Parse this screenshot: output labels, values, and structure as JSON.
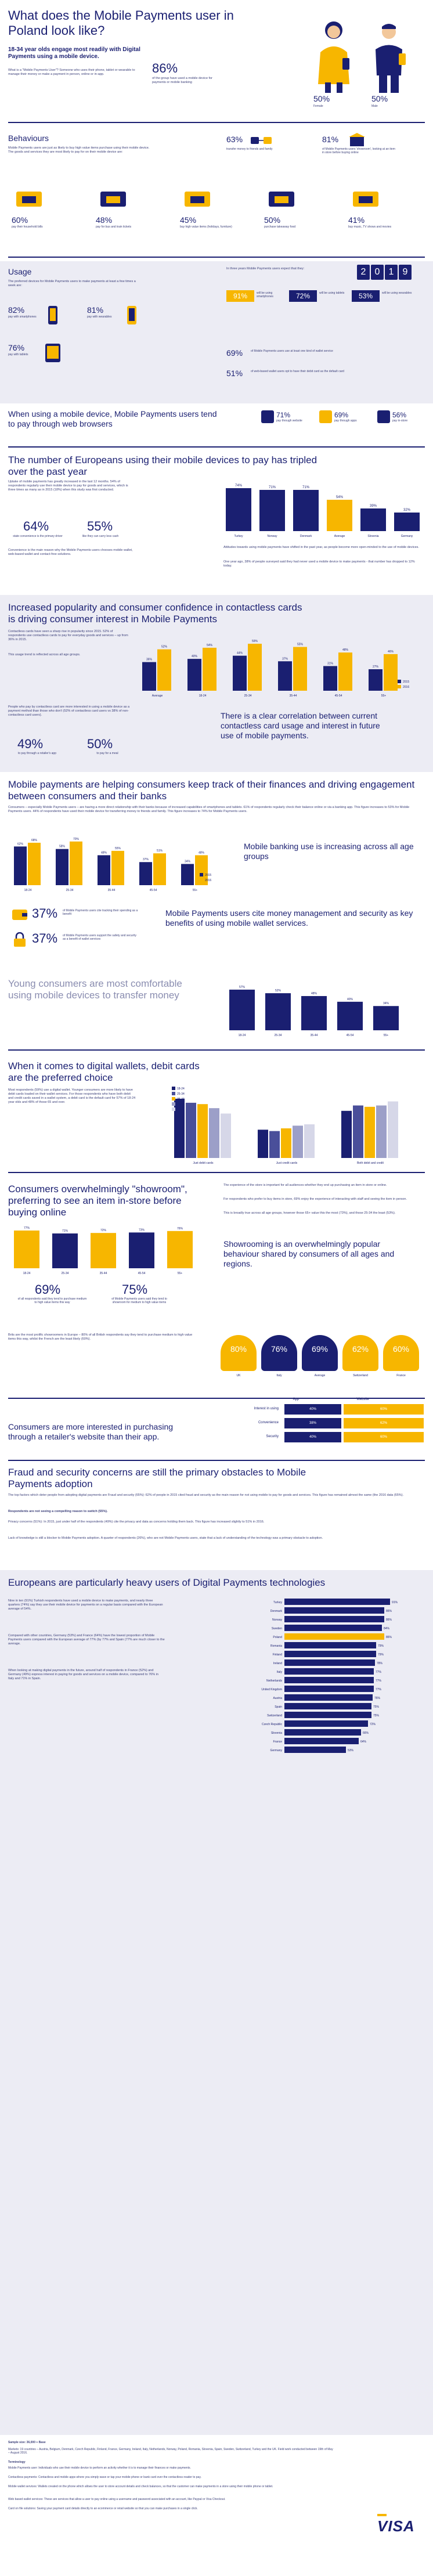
{
  "header": {
    "title": "What does the Mobile Payments user in Poland look like?",
    "headline": "18-34 year olds engage most readily with Digital Payments using a mobile device.",
    "question": "What is a \"Mobile Payments User\"? Someone who uses their phone, tablet or wearable to manage their money or make a payment in person, online or in-app.",
    "stat_value": "86%",
    "stat_label": "of the group have used a mobile device for payments or mobile banking",
    "female_pct": "50%",
    "female_label": "Female",
    "male_pct": "50%",
    "male_label": "Male"
  },
  "behaviours": {
    "title": "Behaviours",
    "text": "Mobile Payments users are just as likely to buy high value items purchase using their mobile device. The goods and services they are most likely to pay for on their mobile device are:",
    "transfer_pct": "63%",
    "transfer_label": "transfer money to friends and family",
    "showroom_pct": "81%",
    "showroom_label": "of Mobile Payments users 'showroom', looking at an item in store before buying online",
    "items": [
      {
        "pct": "60%",
        "label": "pay their household bills",
        "icon": "house-icon"
      },
      {
        "pct": "48%",
        "label": "pay for bus and train tickets",
        "icon": "bus-icon"
      },
      {
        "pct": "45%",
        "label": "buy high value items (holidays, furniture)",
        "icon": "palm-icon"
      },
      {
        "pct": "50%",
        "label": "purchase takeaway food",
        "icon": "takeaway-icon"
      },
      {
        "pct": "41%",
        "label": "buy music, TV shows and movies",
        "icon": "tv-icon"
      }
    ]
  },
  "usage": {
    "title": "Usage",
    "text": "The preferred devices for Mobile Payments users to make payments at least a few times a week are:",
    "devices": [
      {
        "pct": "82%",
        "label": "pay with smartphones",
        "icon": "smartphone-icon"
      },
      {
        "pct": "81%",
        "label": "pay with wearables",
        "icon": "watch-icon"
      },
      {
        "pct": "76%",
        "label": "pay with tablets",
        "icon": "tablet-icon"
      }
    ],
    "future_text": "In three years Mobile Payments users expect that they:",
    "future_year": "2019",
    "future": [
      {
        "pct": "91%",
        "label": "will be using smartphones"
      },
      {
        "pct": "72%",
        "label": "will be using tablets"
      },
      {
        "pct": "53%",
        "label": "will be using wearables"
      }
    ],
    "wallet_pct": "69%",
    "wallet_label": "of Mobile Payments users use at least one kind of wallet service",
    "web_pct": "51%",
    "web_label": "of web-based wallet users opt to have their debit card as the default card"
  },
  "browsers": {
    "title": "When using a mobile device, Mobile Payments users tend to pay through web browsers",
    "items": [
      {
        "pct": "71%",
        "label": "pay through website",
        "icon": "globe-icon"
      },
      {
        "pct": "69%",
        "label": "pay through apps",
        "icon": "apps-icon"
      },
      {
        "pct": "56%",
        "label": "pay in-store",
        "icon": "store-icon"
      }
    ]
  },
  "europeans_tripled": {
    "title": "The number of Europeans using their mobile devices to pay has tripled over the past year",
    "text": "Uptake of mobile payments has greatly increased in the last 12 months. 54% of respondents regularly use their mobile device to pay for goods and services, which is three times as many as in 2015 (18%) when this study was first conducted.",
    "convenience_pct": "64%",
    "convenience_label": "state convenience is the primary driver",
    "carry_pct": "55%",
    "carry_label": "like they can carry less cash",
    "driver_text": "Convenience is the main reason why the Mobile Payments users chooses mobile wallet, web-based wallet and contact-free solutions.",
    "attitudes_text": "Attitudes towards using mobile payments have shifted in the past year, as people become more open-minded to the use of mobile devices.",
    "year_text": "One year ago, 38% of people surveyed said they had never used a mobile device to make payments - that number has dropped to 12% today.",
    "chart_data": {
      "type": "bar",
      "categories": [
        "Turkey",
        "Norway",
        "Denmark",
        "Average",
        "Slovenia",
        "Germany"
      ],
      "values": [
        74,
        71,
        71,
        54,
        39,
        32
      ],
      "value_labels": [
        "74%",
        "71%",
        "71%",
        "54%",
        "39%",
        "32%"
      ],
      "highlight": "Average"
    }
  },
  "contactless": {
    "title": "Increased popularity and consumer confidence in contactless cards is driving consumer interest in Mobile Payments",
    "text": "Contactless cards have seen a sharp rise in popularity since 2015. 52% of respondents use contactless cards to pay for everyday goods and services – up from 36% in 2015.",
    "text2": "This usage trend is reflected across all age groups.",
    "text3": "People who pay by contactless card are more interested in using a mobile device as a payment method than those who don't (52% of contactless card users vs 38% of non-contactless card users).",
    "relay_pct": "49%",
    "relay_label": "to pay through a retailer's app",
    "local_pct": "50%",
    "local_label": "to pay for a meal",
    "correlation": "There is a clear correlation between current contactless card usage and interest in future use of mobile payments.",
    "chart_data": {
      "type": "bar",
      "categories": [
        "Average",
        "18-24",
        "25-34",
        "35-44",
        "45-54",
        "55+"
      ],
      "series": [
        {
          "name": "2015",
          "values": [
            36,
            40,
            44,
            37,
            31,
            27
          ]
        },
        {
          "name": "2016",
          "values": [
            52,
            54,
            59,
            55,
            48,
            46
          ]
        }
      ],
      "value_labels_2015": [
        "36%",
        "40%",
        "44%",
        "37%",
        "31%",
        "27%"
      ],
      "value_labels_2016": [
        "52%",
        "54%",
        "59%",
        "55%",
        "48%",
        "46%"
      ],
      "legend": [
        "2015",
        "2016"
      ]
    }
  },
  "finances": {
    "title": "Mobile payments are helping consumers keep track of their finances and driving engagement between consumers and their banks",
    "text": "Consumers – especially Mobile Payments users – are having a more direct relationship with their banks because of increased capabilities of smartphones and tablets. 61% of respondents regularly check their balance online or via a banking app. This figure increases to 53% for Mobile Payments users. 44% of respondents have used their mobile device for transferring money to friends and family. This figure increases to 74% for Mobile Payments users.",
    "banking_text": "Mobile banking use is increasing across all age groups",
    "track_pct": "37%",
    "track_label": "of Mobile Payments users cite tracking their spending as a benefit",
    "safety_pct": "37%",
    "safety_label": "of Mobile Payments users support the safety and security as a benefit of wallet services",
    "management_text": "Mobile Payments users cite money management and security as key benefits of using mobile wallet services.",
    "young_text": "Young consumers are most comfortable using mobile devices to transfer money",
    "chart_data": {
      "type": "bar",
      "categories": [
        "18-24",
        "25-34",
        "35-44",
        "45-54",
        "55+"
      ],
      "series": [
        {
          "name": "2015",
          "values": [
            62,
            58,
            48,
            37,
            34
          ]
        },
        {
          "name": "2016",
          "values": [
            68,
            70,
            55,
            51,
            48
          ]
        }
      ],
      "value_labels_2015": [
        "62%",
        "58%",
        "48%",
        "37%",
        "34%"
      ],
      "value_labels_2016": [
        "68%",
        "70%",
        "55%",
        "51%",
        "48%"
      ],
      "legend": [
        "2015",
        "2016"
      ]
    },
    "chart_data_young": {
      "type": "bar",
      "categories": [
        "18-24",
        "25-34",
        "35-44",
        "45-54",
        "55+"
      ],
      "values": [
        57,
        52,
        48,
        40,
        34
      ],
      "value_labels": [
        "57%",
        "52%",
        "48%",
        "40%",
        "34%"
      ]
    }
  },
  "wallets": {
    "title": "When it comes to digital wallets, debit cards are the preferred choice",
    "text": "Most respondents (59%) use a digital wallet. Younger consumers are more likely to have debit cards loaded on their wallet services. For those respondents who have both debit and credit cards saved in a wallet system, a debit card is the default card for 57% of 18-24 year olds and 48% of those 65 and over.",
    "chart_data": {
      "type": "bar",
      "categories": [
        "Just debit cards",
        "Just credit cards",
        "Both debit and credit"
      ],
      "series": [
        {
          "name": "18-24",
          "values": [
            44,
            21,
            35
          ]
        },
        {
          "name": "25-34",
          "values": [
            41,
            20,
            39
          ]
        },
        {
          "name": "35-44",
          "values": [
            40,
            22,
            38
          ]
        },
        {
          "name": "45-54",
          "values": [
            37,
            24,
            39
          ]
        },
        {
          "name": "55+",
          "values": [
            33,
            25,
            42
          ]
        }
      ],
      "legend": [
        "18-24",
        "25-34",
        "35-44",
        "45-54",
        "55+"
      ]
    }
  },
  "showrooming": {
    "title": "Consumers overwhelmingly \"showroom\", preferring to see an item in-store before buying online",
    "text1": "The experience of the store is important for all audiences whether they end up purchasing an item in store or online.",
    "text2": "For respondents who prefer to buy items in store, 69% enjoy the experience of interacting with staff and seeing the item in person.",
    "text3": "This is broadly true across all age groups, however those 65+ value this the most (73%), and those 25-34 the least (53%).",
    "conclusion": "Showrooming is an overwhelmingly popular behaviour shared by consumers of all ages and regions.",
    "pct_a": "69%",
    "label_a": "of all respondents said they tend to purchase medium to high value items this way",
    "pct_b": "75%",
    "label_b": "of Mobile Payments users said they tend to showroom for medium to high value items",
    "brits_text": "Brits are the most prolific showroomers in Europe – 80% of all British respondents say they tend to purchase medium to high value items this way, whilst the French are the least likely (60%).",
    "chart_data": {
      "type": "bar",
      "categories": [
        "18-24",
        "25-34",
        "35-44",
        "45-54",
        "55+"
      ],
      "values": [
        77,
        71,
        72,
        73,
        76
      ],
      "value_labels": [
        "77%",
        "71%",
        "72%",
        "73%",
        "76%"
      ]
    },
    "countries": [
      {
        "pct": "80%",
        "name": "UK"
      },
      {
        "pct": "76%",
        "name": "Italy"
      },
      {
        "pct": "69%",
        "name": "Average"
      },
      {
        "pct": "62%",
        "name": "Switzerland"
      },
      {
        "pct": "60%",
        "name": "France"
      }
    ]
  },
  "app_vs_website": {
    "title": "Consumers are more interested in purchasing through a retailer's website than their app.",
    "col_app": "App",
    "col_website": "Website",
    "rows": [
      {
        "label": "Interest in using",
        "app": "40%",
        "website": "60%"
      },
      {
        "label": "Convenience",
        "app": "38%",
        "website": "62%"
      },
      {
        "label": "Security",
        "app": "40%",
        "website": "60%"
      }
    ]
  },
  "fraud": {
    "title": "Fraud and security concerns are still the primary obstacles to Mobile Payments adoption",
    "text": "The top factors which deter people from adopting digital payments are Fraud and security (65%): 62% of people in 2015 cited fraud and security as the main reason for not using mobile to pay for goods and services. This figure has remained almost the same (the 2016 data (65%).",
    "text2": "Respondents are not seeing a compelling reason to switch (55%).",
    "text3": "Privacy concerns (51%): In 2015, just under half of the respondents (49%) cite the privacy and data as concerns holding them back. This figure has increased slightly to 51% in 2016.",
    "text4": "Lack of knowledge is still a blocker to Mobile Payments adoption. A quarter of respondents (26%), who are not Mobile Payments users, state that a lack of understanding of the technology was a primary obstacle to adoption."
  },
  "heavy_users": {
    "title": "Europeans are particularly heavy users of Digital Payments technologies",
    "text1": "Nine in ten (91%) Turkish respondents have used a mobile device to make payments, and nearly three quarters (74%) say they use their mobile device for payments on a regular basis compared with the European average of 54%.",
    "text2": "Compared with other countries, Germany (53%) and France (64%) have the lowest proportion of Mobile Payments users compared with the European average of 77% (by 77% and Spain (77% are much closer to the average.",
    "text3": "When looking at making digital payments in the future, around half of respondents in France (52%) and Germany (49%) express interest in paying for goods and services on a mobile device, compared to 76% in Italy and 71% in Spain.",
    "chart_data": {
      "type": "bar",
      "categories": [
        "Turkey",
        "Denmark",
        "Norway",
        "Sweden",
        "Poland",
        "Romania",
        "Finland",
        "Ireland",
        "Italy",
        "Netherlands",
        "United Kingdom",
        "Austria",
        "Spain",
        "Switzerland",
        "Czech Republic",
        "Slovenia",
        "France",
        "Germany"
      ],
      "values": [
        91,
        86,
        86,
        84,
        86,
        79,
        79,
        78,
        77,
        77,
        77,
        76,
        75,
        75,
        72,
        66,
        64,
        53
      ],
      "value_labels": [
        "91%",
        "86%",
        "86%",
        "84%",
        "86%",
        "79%",
        "79%",
        "78%",
        "77%",
        "77%",
        "77%",
        "76%",
        "75%",
        "75%",
        "72%",
        "66%",
        "64%",
        "53%"
      ]
    }
  },
  "footer": {
    "sample": "Sample size: 36,000 + Base",
    "markets": "Markets: 19 countries – Austria, Belgium, Denmark, Czech Republic, Finland, France, Germany, Ireland, Italy, Netherlands, Norway, Poland, Romania, Slovenia, Spain, Sweden, Switzerland, Turkey and the UK. Field work conducted between 19th of May – August 2016.",
    "terminology_title": "Terminology",
    "terminology_1": "Mobile Payments user: Individuals who use their mobile device to perform an activity whether it is to manage their finances or make payments.",
    "terminology_2": "Contactless payments: Contactless and mobile apps where you simply wave or tap your mobile phone or bank card over the contactless reader to pay.",
    "terminology_3": "Mobile wallet services: Wallets created on the phone which allows the user to store account details and check balances, so that the customer can make payments in a store using their mobile phone or tablet.",
    "terminology_4": "Web based wallet services: These are services that allow a user to pay online using a username and password associated with an account, like Paypal or Visa Checkout.",
    "terminology_5": "Card on file solutions: Saving your payment card details directly to an ecommerce or retail website so that you can make purchases in a single click.",
    "logo": "VISA"
  }
}
